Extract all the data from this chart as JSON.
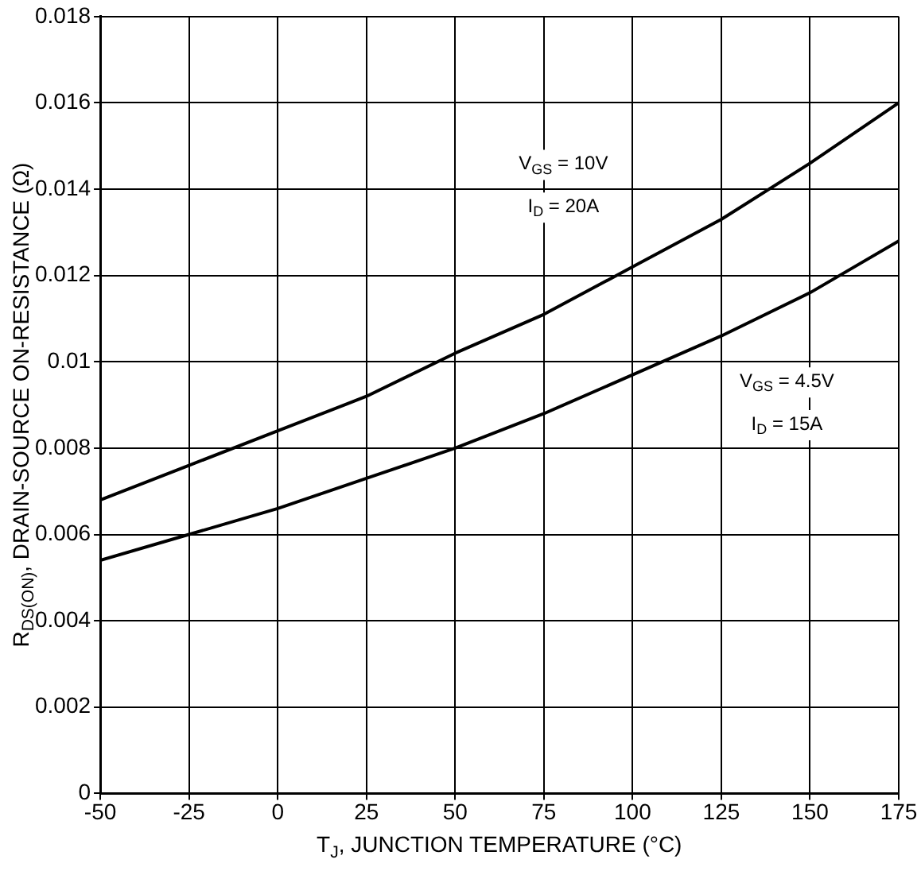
{
  "chart_data": {
    "type": "line",
    "xlabel": "T$_{J}$, JUNCTION TEMPERATURE (°C)",
    "ylabel": "R$_{DS(ON)}$, DRAIN-SOURCE ON-RESISTANCE (Ω)",
    "x": [
      -50,
      -25,
      0,
      25,
      50,
      75,
      100,
      125,
      150,
      175
    ],
    "series": [
      {
        "color": "#000000",
        "values": [
          0.0068,
          0.0076,
          0.0084,
          0.0092,
          0.0102,
          0.0111,
          0.0122,
          0.0133,
          0.0146,
          0.016
        ]
      },
      {
        "color": "#000000",
        "values": [
          0.0054,
          0.006,
          0.0066,
          0.0073,
          0.008,
          0.0088,
          0.0097,
          0.0106,
          0.0116,
          0.0128
        ]
      }
    ],
    "annotations": [
      "V$_{GS}$ = 10V",
      "I$_{D}$ = 20A",
      "V$_{GS}$ = 4.5V",
      "I$_{D}$ = 15A"
    ],
    "xlim": [
      -50,
      175
    ],
    "xticks": [
      -50,
      -25,
      0,
      25,
      50,
      75,
      100,
      125,
      150,
      175
    ],
    "ylim": [
      0,
      0.018
    ],
    "yticks": [
      0,
      0.002,
      0.004,
      0.006,
      0.008,
      0.01,
      0.012,
      0.014,
      0.016,
      0.018
    ],
    "grid": true,
    "marker": "none",
    "line_style": "solid"
  }
}
